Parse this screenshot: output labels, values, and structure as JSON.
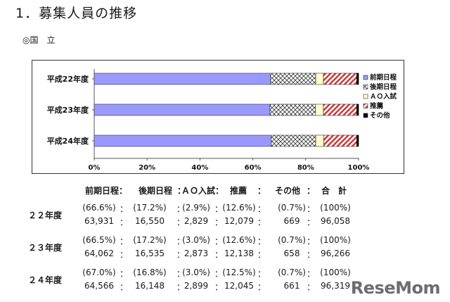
{
  "heading": "1．募集人員の推移",
  "subheading": "◎国　立",
  "colors": {
    "zenki": "#9999ff",
    "koki_stroke": "#333333",
    "ao": "#ffffcc",
    "suisen": "#cc3333",
    "sonota": "#000000"
  },
  "chart_data": {
    "type": "bar",
    "orientation": "horizontal",
    "stacked": true,
    "percent": true,
    "categories": [
      "平成22年度",
      "平成23年度",
      "平成24年度"
    ],
    "series": [
      {
        "name": "前期日程",
        "values": [
          66.6,
          66.5,
          67.0
        ]
      },
      {
        "name": "後期日程",
        "values": [
          17.2,
          17.2,
          16.8
        ]
      },
      {
        "name": "ＡＯ入試",
        "values": [
          2.9,
          3.0,
          3.0
        ]
      },
      {
        "name": "推薦",
        "values": [
          12.6,
          12.6,
          12.5
        ]
      },
      {
        "name": "その他",
        "values": [
          0.7,
          0.7,
          0.7
        ]
      }
    ],
    "x_ticks": [
      "0%",
      "20%",
      "40%",
      "60%",
      "80%",
      "100%"
    ],
    "xlim": [
      0,
      100
    ],
    "legend": "right",
    "grid": false
  },
  "table": {
    "headers": [
      "前期日程",
      "：",
      "後期日程",
      "：",
      "ＡＯ入試",
      "：",
      "推薦",
      "：",
      "その他",
      "：",
      "合　計"
    ],
    "rows": [
      {
        "label": "２２年度",
        "percents": [
          "(66.6%)",
          "：",
          "(17.2%)",
          "：",
          "(2.9%)",
          "：",
          "(12.6%)",
          "：",
          "(0.7%)",
          "：",
          "(100%)"
        ],
        "counts": [
          "63,931",
          "：",
          "16,550",
          "：",
          "2,829",
          "：",
          "12,079",
          "：",
          "669",
          "：",
          "96,058"
        ]
      },
      {
        "label": "２３年度",
        "percents": [
          "(66.5%)",
          "：",
          "(17.2%)",
          "：",
          "(3.0%)",
          "：",
          "(12.6%)",
          "：",
          "(0.7%)",
          "：",
          "(100%)"
        ],
        "counts": [
          "64,062",
          "：",
          "16,535",
          "：",
          "2,873",
          "：",
          "12,138",
          "：",
          "658",
          "：",
          "96,266"
        ]
      },
      {
        "label": "２４年度",
        "percents": [
          "(67.0%)",
          "：",
          "(16.8%)",
          "：",
          "(3.0%)",
          "：",
          "(12.5%)",
          "：",
          "(0.7%)",
          "：",
          "(100%)"
        ],
        "counts": [
          "64,566",
          "：",
          "16,148",
          "：",
          "2,899",
          "：",
          "12,045",
          "：",
          "661",
          "：",
          "96,319"
        ]
      }
    ]
  },
  "watermark": "ReseMom"
}
